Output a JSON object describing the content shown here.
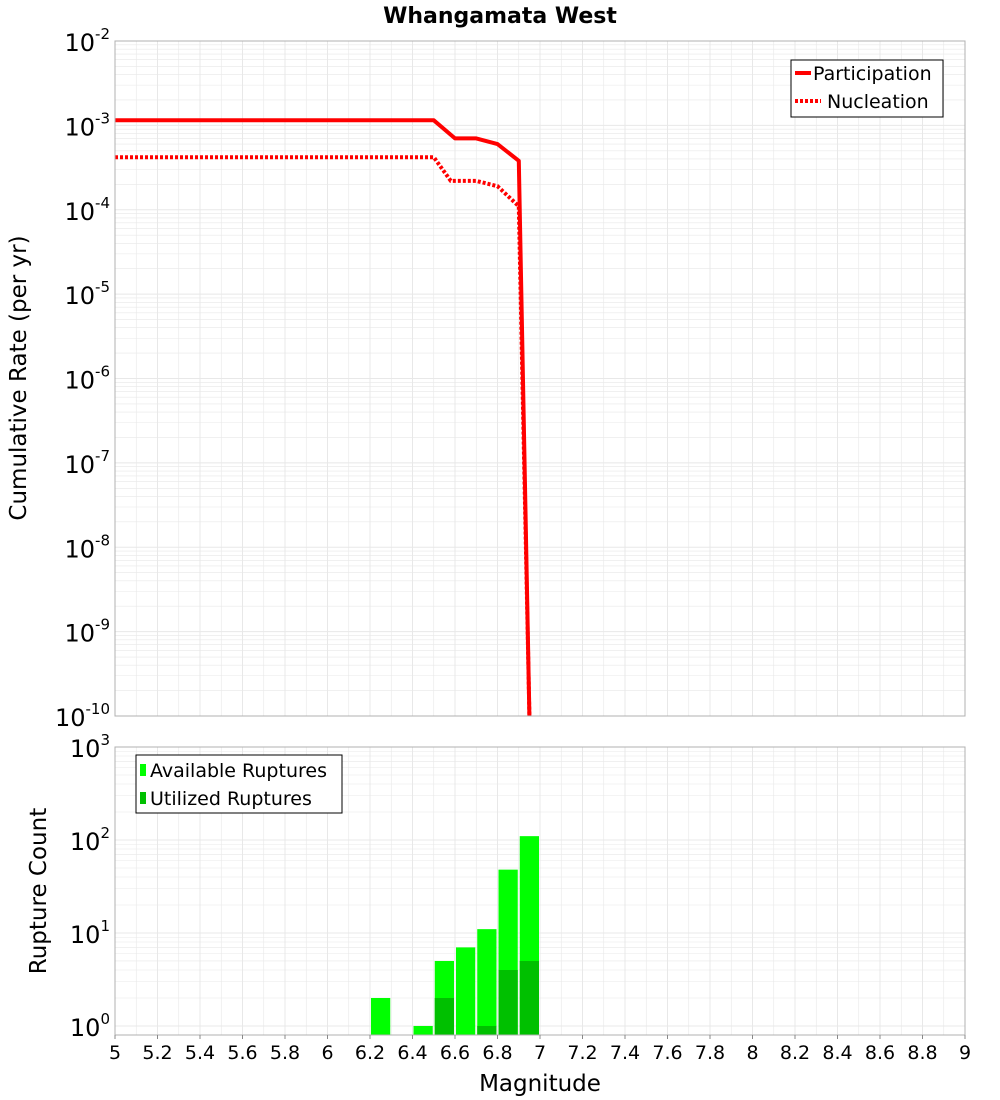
{
  "title": "Whangamata West",
  "colors": {
    "participation": "#ff0000",
    "nucleation": "#ff0000",
    "available": "#00ff00",
    "utilized": "#00c000",
    "grid": "#e8e8e8",
    "frame": "#b0b0b0"
  },
  "chart_data": [
    {
      "type": "line",
      "title": "Whangamata West",
      "xlabel": "",
      "ylabel": "Cumulative Rate (per yr)",
      "yscale": "log",
      "xlim": [
        5,
        9
      ],
      "ylim": [
        1e-10,
        0.01
      ],
      "y_ticks": [
        {
          "base": "10",
          "exp": "-2",
          "value": 0.01
        },
        {
          "base": "10",
          "exp": "-3",
          "value": 0.001
        },
        {
          "base": "10",
          "exp": "-4",
          "value": 0.0001
        },
        {
          "base": "10",
          "exp": "-5",
          "value": 1e-05
        },
        {
          "base": "10",
          "exp": "-6",
          "value": 1e-06
        },
        {
          "base": "10",
          "exp": "-7",
          "value": 1e-07
        },
        {
          "base": "10",
          "exp": "-8",
          "value": 1e-08
        },
        {
          "base": "10",
          "exp": "-9",
          "value": 1e-09
        },
        {
          "base": "10",
          "exp": "-10",
          "value": 1e-10
        }
      ],
      "legend_position": "top-right",
      "series": [
        {
          "name": "Participation",
          "style": "solid",
          "x": [
            5.0,
            6.5,
            6.6,
            6.7,
            6.8,
            6.9,
            6.95
          ],
          "y": [
            0.00115,
            0.00115,
            0.0007,
            0.0007,
            0.0006,
            0.00038,
            1e-10
          ]
        },
        {
          "name": "Nucleation",
          "style": "dotted",
          "x": [
            5.0,
            6.5,
            6.58,
            6.7,
            6.8,
            6.9,
            6.95
          ],
          "y": [
            0.00042,
            0.00042,
            0.00022,
            0.00022,
            0.00019,
            0.00011,
            1e-10
          ]
        }
      ]
    },
    {
      "type": "bar",
      "title": "",
      "xlabel": "Magnitude",
      "ylabel": "Rupture Count",
      "yscale": "log",
      "xlim": [
        5,
        9
      ],
      "ylim": [
        0.8,
        1000
      ],
      "y_ticks": [
        {
          "base": "10",
          "exp": "3",
          "value": 1000
        },
        {
          "base": "10",
          "exp": "2",
          "value": 100
        },
        {
          "base": "10",
          "exp": "1",
          "value": 10
        },
        {
          "base": "10",
          "exp": "0",
          "value": 1
        }
      ],
      "x_ticks": [
        "5",
        "5.2",
        "5.4",
        "5.6",
        "5.8",
        "6",
        "6.2",
        "6.4",
        "6.6",
        "6.8",
        "7",
        "7.2",
        "7.4",
        "7.6",
        "7.8",
        "8",
        "8.2",
        "8.4",
        "8.6",
        "8.8",
        "9"
      ],
      "legend_position": "top-left",
      "bin_width": 0.1,
      "series": [
        {
          "name": "Available Ruptures",
          "x": [
            6.25,
            6.45,
            6.55,
            6.65,
            6.75,
            6.85,
            6.95
          ],
          "values": [
            2,
            1,
            5,
            7,
            11,
            48,
            110
          ]
        },
        {
          "name": "Utilized Ruptures",
          "x": [
            6.55,
            6.75,
            6.85,
            6.95
          ],
          "values": [
            2,
            1,
            4,
            5
          ]
        }
      ]
    }
  ]
}
